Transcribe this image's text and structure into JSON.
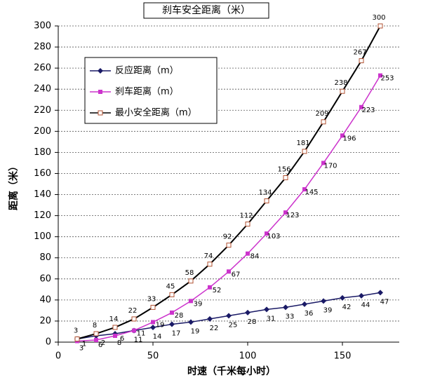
{
  "chart_data": {
    "type": "line",
    "title": "刹车安全距离（米）",
    "x_label": "时速（千米每小时）",
    "y_label": "距离（米）",
    "x": [
      10,
      20,
      30,
      40,
      50,
      60,
      70,
      80,
      90,
      100,
      110,
      120,
      130,
      140,
      150,
      160,
      170
    ],
    "series": [
      {
        "name": "反应距离（m）",
        "color": "#1a1a66",
        "values": [
          3,
          6,
          8,
          11,
          14,
          17,
          19,
          22,
          25,
          28,
          31,
          33,
          36,
          39,
          42,
          44,
          47
        ]
      },
      {
        "name": "刹车距离（m）",
        "color": "#cc33cc",
        "values": [
          1,
          2,
          6,
          11,
          19,
          28,
          39,
          52,
          67,
          84,
          103,
          123,
          145,
          170,
          196,
          223,
          253
        ]
      },
      {
        "name": "最小安全距离（m）",
        "color": "#000000",
        "values": [
          3,
          8,
          14,
          22,
          33,
          45,
          58,
          74,
          92,
          112,
          134,
          156,
          181,
          209,
          238,
          267,
          300
        ]
      }
    ],
    "xlim": [
      0,
      180
    ],
    "xticks": [
      0,
      50,
      100,
      150
    ],
    "ylim": [
      0,
      300
    ],
    "yticks": [
      0,
      20,
      40,
      60,
      80,
      100,
      120,
      140,
      160,
      180,
      200,
      220,
      240,
      260,
      280,
      300
    ],
    "grid": true
  }
}
